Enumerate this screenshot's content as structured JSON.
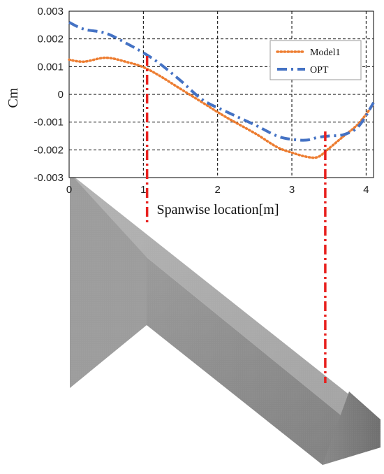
{
  "chart_data": {
    "type": "line",
    "title": "",
    "xlabel": "Spanwise location[m]",
    "ylabel": "Cm",
    "xlim": [
      0,
      4.1
    ],
    "ylim": [
      -0.003,
      0.003
    ],
    "x_ticks": [
      "0",
      "1",
      "2",
      "3",
      "4"
    ],
    "y_ticks": [
      "0.003",
      "0.002",
      "0.001",
      "0",
      "-0.001",
      "-0.002",
      "-0.003"
    ],
    "grid": true,
    "legend": "top-right",
    "series": [
      {
        "name": "Model1",
        "color": "#ED7D31",
        "style": "dotted",
        "x": [
          0,
          0.2,
          0.5,
          0.8,
          1.0,
          1.2,
          1.5,
          1.8,
          2.1,
          2.5,
          2.8,
          3.0,
          3.2,
          3.35,
          3.5,
          3.7,
          3.9,
          4.1
        ],
        "y": [
          0.00125,
          0.00118,
          0.00132,
          0.00115,
          0.00098,
          0.0007,
          0.0002,
          -0.0003,
          -0.0008,
          -0.0014,
          -0.0019,
          -0.0021,
          -0.00225,
          -0.00226,
          -0.00195,
          -0.0015,
          -0.00105,
          -0.00035
        ]
      },
      {
        "name": "OPT",
        "color": "#4472C4",
        "style": "dash-dot",
        "x": [
          0,
          0.2,
          0.5,
          0.8,
          1.0,
          1.2,
          1.5,
          1.8,
          2.1,
          2.5,
          2.8,
          3.0,
          3.2,
          3.35,
          3.5,
          3.7,
          3.9,
          4.1
        ],
        "y": [
          0.0026,
          0.00235,
          0.0022,
          0.0018,
          0.0015,
          0.00115,
          0.0005,
          -0.0002,
          -0.0006,
          -0.0011,
          -0.0015,
          -0.00162,
          -0.00165,
          -0.00155,
          -0.0015,
          -0.00145,
          -0.00115,
          -0.0003
        ]
      }
    ],
    "markers": {
      "color": "#E8211F",
      "x": [
        1.05,
        3.45
      ]
    }
  },
  "figure": {
    "mesh_color": "#8a8a8a"
  }
}
